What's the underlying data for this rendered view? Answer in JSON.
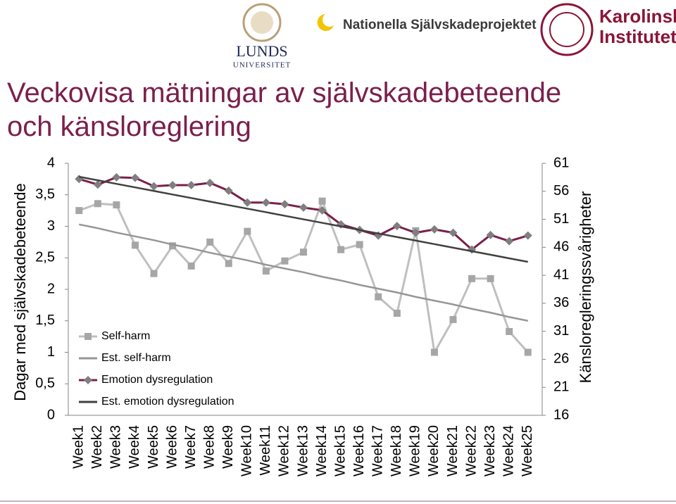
{
  "logos": {
    "lund": [
      "LUNDS",
      "UNIVERSITET"
    ],
    "project": "Nationella Självskadeprojektet",
    "ki": [
      "Karolinska",
      "Institutet"
    ]
  },
  "chart_data": {
    "type": "line",
    "title": "Veckovisa mätningar av självskadebeteende och känsloreglering",
    "y_label": "Dagar med självskadebeteende",
    "y2_label": "Känsloregleringssvårigheter",
    "categories": [
      "Week1",
      "Week2",
      "Week3",
      "Week4",
      "Week5",
      "Week6",
      "Week7",
      "Week8",
      "Week9",
      "Week10",
      "Week11",
      "Week12",
      "Week13",
      "Week14",
      "Week15",
      "Week16",
      "Week17",
      "Week18",
      "Week19",
      "Week20",
      "Week21",
      "Week22",
      "Week23",
      "Week24",
      "Week25"
    ],
    "ylim": [
      0,
      4
    ],
    "yticks": [
      0,
      {
        "value": 0.5,
        "label": "0,5"
      },
      1,
      {
        "value": 1.5,
        "label": "1,5"
      },
      2,
      {
        "value": 2.5,
        "label": "2,5"
      },
      3,
      {
        "value": 3.5,
        "label": "3,5"
      },
      4
    ],
    "y2lim": [
      16,
      61
    ],
    "y2ticks": [
      16,
      21,
      26,
      31,
      36,
      41,
      46,
      51,
      56,
      61
    ],
    "legend": "lower-left",
    "series": [
      {
        "name": "Self-harm",
        "color": "#bfbfbf",
        "marker": "square",
        "marker_color": "#a6a6a6",
        "values": [
          3.25,
          3.36,
          3.34,
          2.7,
          2.25,
          2.69,
          2.37,
          2.75,
          2.41,
          2.92,
          2.29,
          2.45,
          2.59,
          3.4,
          2.63,
          2.71,
          1.88,
          1.62,
          2.93,
          1.0,
          1.52,
          2.17,
          2.17,
          1.33,
          1.0
        ]
      },
      {
        "name": "Est. self-harm",
        "color": "#969696",
        "values": [
          3.03,
          2.97,
          2.9,
          2.84,
          2.78,
          2.71,
          2.65,
          2.58,
          2.52,
          2.46,
          2.39,
          2.33,
          2.27,
          2.2,
          2.14,
          2.07,
          2.01,
          1.95,
          1.88,
          1.82,
          1.76,
          1.69,
          1.63,
          1.56,
          1.5
        ]
      },
      {
        "name": "Emotion dysregulation",
        "color": "#7b1f4d",
        "marker": "diamond",
        "marker_color": "#7f7f7f",
        "axis": "y2",
        "values": [
          58.2,
          57.2,
          58.5,
          58.4,
          56.9,
          57.1,
          57.1,
          57.5,
          56.1,
          54.0,
          54.0,
          53.7,
          53.1,
          52.6,
          50.1,
          49.1,
          48.1,
          49.8,
          48.6,
          49.2,
          48.6,
          45.6,
          48.2,
          47.1,
          48.1
        ]
      },
      {
        "name": "Est. emotion dysregulation",
        "color": "#404040",
        "axis": "y2",
        "values": [
          58.6,
          57.97,
          57.33,
          56.7,
          56.07,
          55.43,
          54.8,
          54.17,
          53.53,
          52.9,
          52.27,
          51.63,
          51.0,
          50.37,
          49.73,
          49.1,
          48.47,
          47.83,
          47.2,
          46.57,
          45.93,
          45.3,
          44.67,
          44.03,
          43.4
        ]
      }
    ]
  }
}
